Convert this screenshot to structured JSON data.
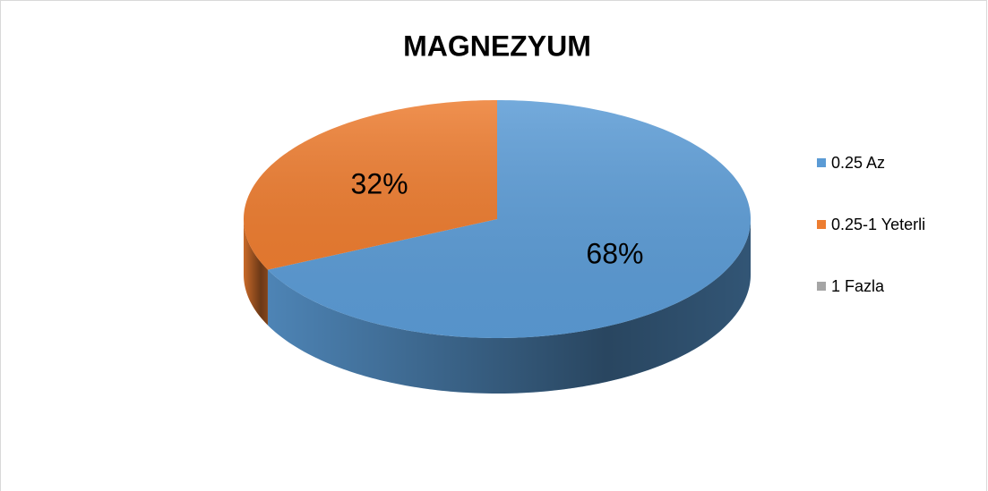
{
  "chart_data": {
    "type": "pie",
    "title": "MAGNEZYUM",
    "categories": [
      "0.25 Az",
      "0.25-1 Yeterli",
      "1 Fazla"
    ],
    "values": [
      68,
      32,
      0
    ],
    "value_labels": [
      "68%",
      "32%",
      null
    ],
    "colors": [
      "#5b9bd5",
      "#ed7d31",
      "#a5a5a5"
    ],
    "legend": "right"
  }
}
